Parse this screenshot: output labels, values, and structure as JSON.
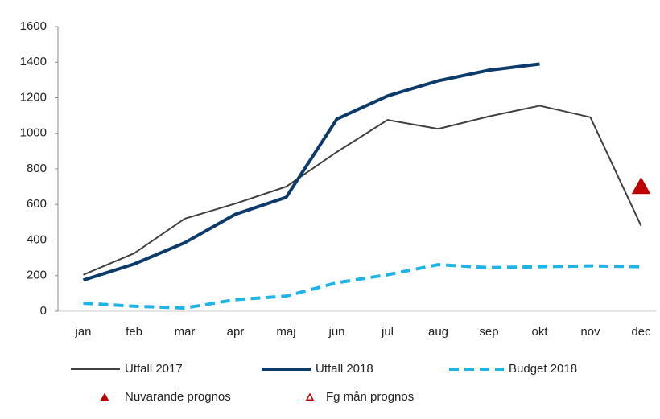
{
  "chart_data": {
    "type": "line",
    "categories": [
      "jan",
      "feb",
      "mar",
      "apr",
      "maj",
      "jun",
      "jul",
      "aug",
      "sep",
      "okt",
      "nov",
      "dec"
    ],
    "series": [
      {
        "name": "Utfall 2017",
        "color": "#404040",
        "style": "solid",
        "values": [
          205,
          325,
          520,
          605,
          700,
          895,
          1075,
          1025,
          1095,
          1155,
          1090,
          480
        ]
      },
      {
        "name": "Utfall 2018",
        "color": "#0b3a6b",
        "style": "thick",
        "values": [
          175,
          265,
          385,
          545,
          640,
          1080,
          1210,
          1295,
          1355,
          1390,
          null,
          null
        ]
      },
      {
        "name": "Budget 2018",
        "color": "#1eb4e6",
        "style": "dashed",
        "values": [
          45,
          28,
          18,
          65,
          85,
          160,
          205,
          262,
          245,
          250,
          255,
          250
        ]
      },
      {
        "name": "Nuvarande prognos",
        "color": "#c00000",
        "style": "triangle-filled",
        "values": [
          null,
          null,
          null,
          null,
          null,
          null,
          null,
          null,
          null,
          null,
          null,
          700
        ]
      },
      {
        "name": "Fg mån prognos",
        "color": "#c00000",
        "style": "triangle-open",
        "values": [
          null,
          null,
          null,
          null,
          null,
          null,
          null,
          null,
          null,
          null,
          null,
          700
        ]
      }
    ],
    "ylim": [
      0,
      1600
    ],
    "yticks": [
      0,
      200,
      400,
      600,
      800,
      1000,
      1200,
      1400,
      1600
    ],
    "grid": false
  }
}
